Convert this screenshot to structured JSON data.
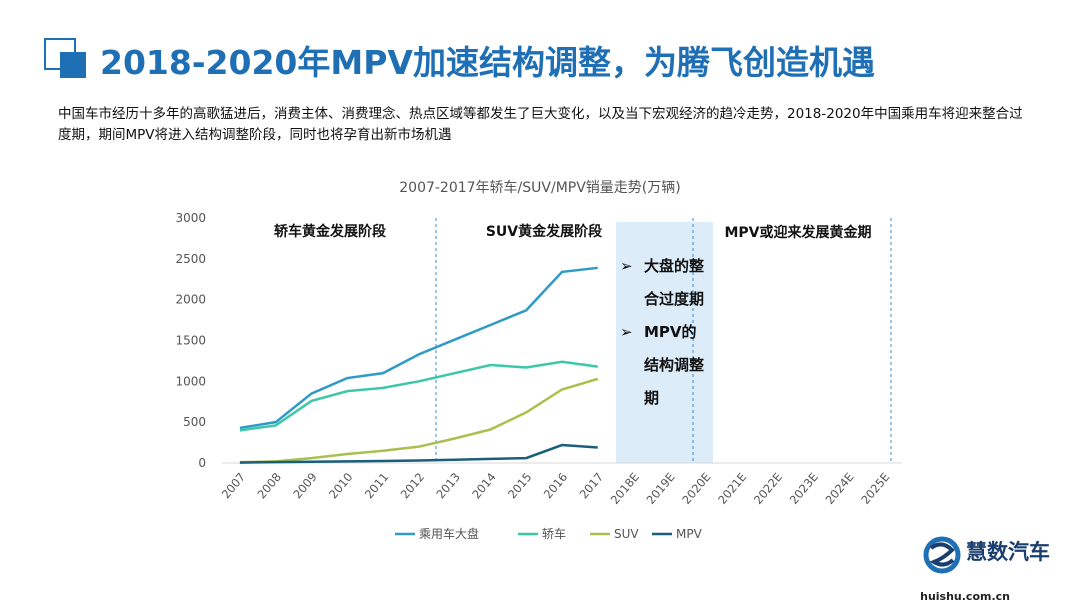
{
  "header": {
    "title": "2018-2020年MPV加速结构调整，为腾飞创造机遇",
    "intro": "中国车市经历十多年的高歌猛进后，消费主体、消费理念、热点区域等都发生了巨大变化，以及当下宏观经济的趋冷走势，2018-2020年中国乘用车将迎来整合过度期，期间MPV将进入结构调整阶段，同时也将孕育出新市场机遇"
  },
  "chart_data": {
    "type": "line",
    "title": "2007-2017年轿车/SUV/MPV销量走势(万辆)",
    "categories": [
      "2007",
      "2008",
      "2009",
      "2010",
      "2011",
      "2012",
      "2013",
      "2014",
      "2015",
      "2016",
      "2017",
      "2018E",
      "2019E",
      "2020E",
      "2021E",
      "2022E",
      "2023E",
      "2024E",
      "2025E"
    ],
    "series": [
      {
        "name": "乘用车大盘",
        "color": "#2e9bc6",
        "values": [
          430,
          500,
          850,
          1040,
          1100,
          1330,
          1510,
          1690,
          1870,
          2340,
          2390,
          null,
          null,
          null,
          null,
          null,
          null,
          null,
          null
        ]
      },
      {
        "name": "轿车",
        "color": "#3cc8a8",
        "values": [
          400,
          460,
          760,
          880,
          920,
          1000,
          1100,
          1200,
          1170,
          1240,
          1180,
          null,
          null,
          null,
          null,
          null,
          null,
          null,
          null
        ]
      },
      {
        "name": "SUV",
        "color": "#a9c04e",
        "values": [
          10,
          20,
          60,
          110,
          150,
          200,
          300,
          410,
          620,
          900,
          1030,
          null,
          null,
          null,
          null,
          null,
          null,
          null,
          null
        ]
      },
      {
        "name": "MPV",
        "color": "#1a5f7a",
        "values": [
          5,
          10,
          15,
          20,
          25,
          30,
          40,
          50,
          60,
          220,
          190,
          null,
          null,
          null,
          null,
          null,
          null,
          null,
          null
        ]
      }
    ],
    "ylim": [
      0,
      3000
    ],
    "yticks": [
      0,
      500,
      1000,
      1500,
      2000,
      2500,
      3000
    ],
    "grid": false,
    "legend": "bottom",
    "annotations": {
      "phase1": "轿车黄金发展阶段",
      "phase2": "SUV黄金发展阶段",
      "phase3": "MPV或迎来发展黄金期",
      "callout": [
        "大盘的整合过度期",
        "MPV的结构调整期"
      ]
    }
  },
  "logo": {
    "name": "慧数汽车",
    "url": "huishu.com.cn"
  }
}
